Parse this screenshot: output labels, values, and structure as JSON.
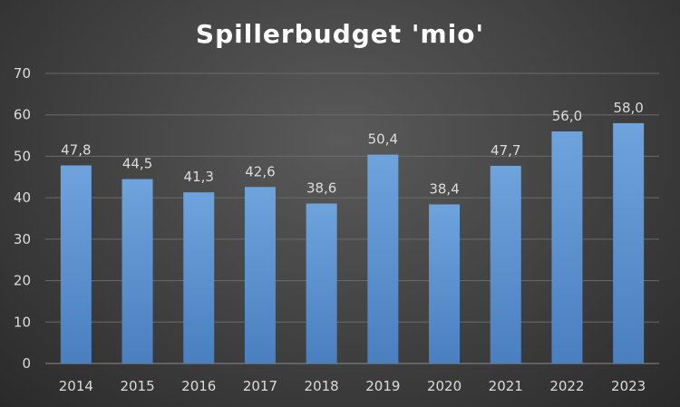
{
  "chart_data": {
    "type": "bar",
    "title": "Spillerbudget 'mio'",
    "xlabel": "",
    "ylabel": "",
    "categories": [
      "2014",
      "2015",
      "2016",
      "2017",
      "2018",
      "2019",
      "2020",
      "2021",
      "2022",
      "2023"
    ],
    "values": [
      47.8,
      44.5,
      41.3,
      42.6,
      38.6,
      50.4,
      38.4,
      47.7,
      56.0,
      58.0
    ],
    "data_labels": [
      "47,8",
      "44,5",
      "41,3",
      "42,6",
      "38,6",
      "50,4",
      "38,4",
      "47,7",
      "56,0",
      "58,0"
    ],
    "y_ticks": [
      0,
      10,
      20,
      30,
      40,
      50,
      60,
      70
    ],
    "ylim": [
      0,
      70
    ],
    "grid": true,
    "legend": "none",
    "colors": {
      "bar_top": "#6fa3dc",
      "bar_bottom": "#4a7fc0",
      "text": "#dcdcdc",
      "title": "#ffffff",
      "grid": "#6a6a6a"
    }
  }
}
